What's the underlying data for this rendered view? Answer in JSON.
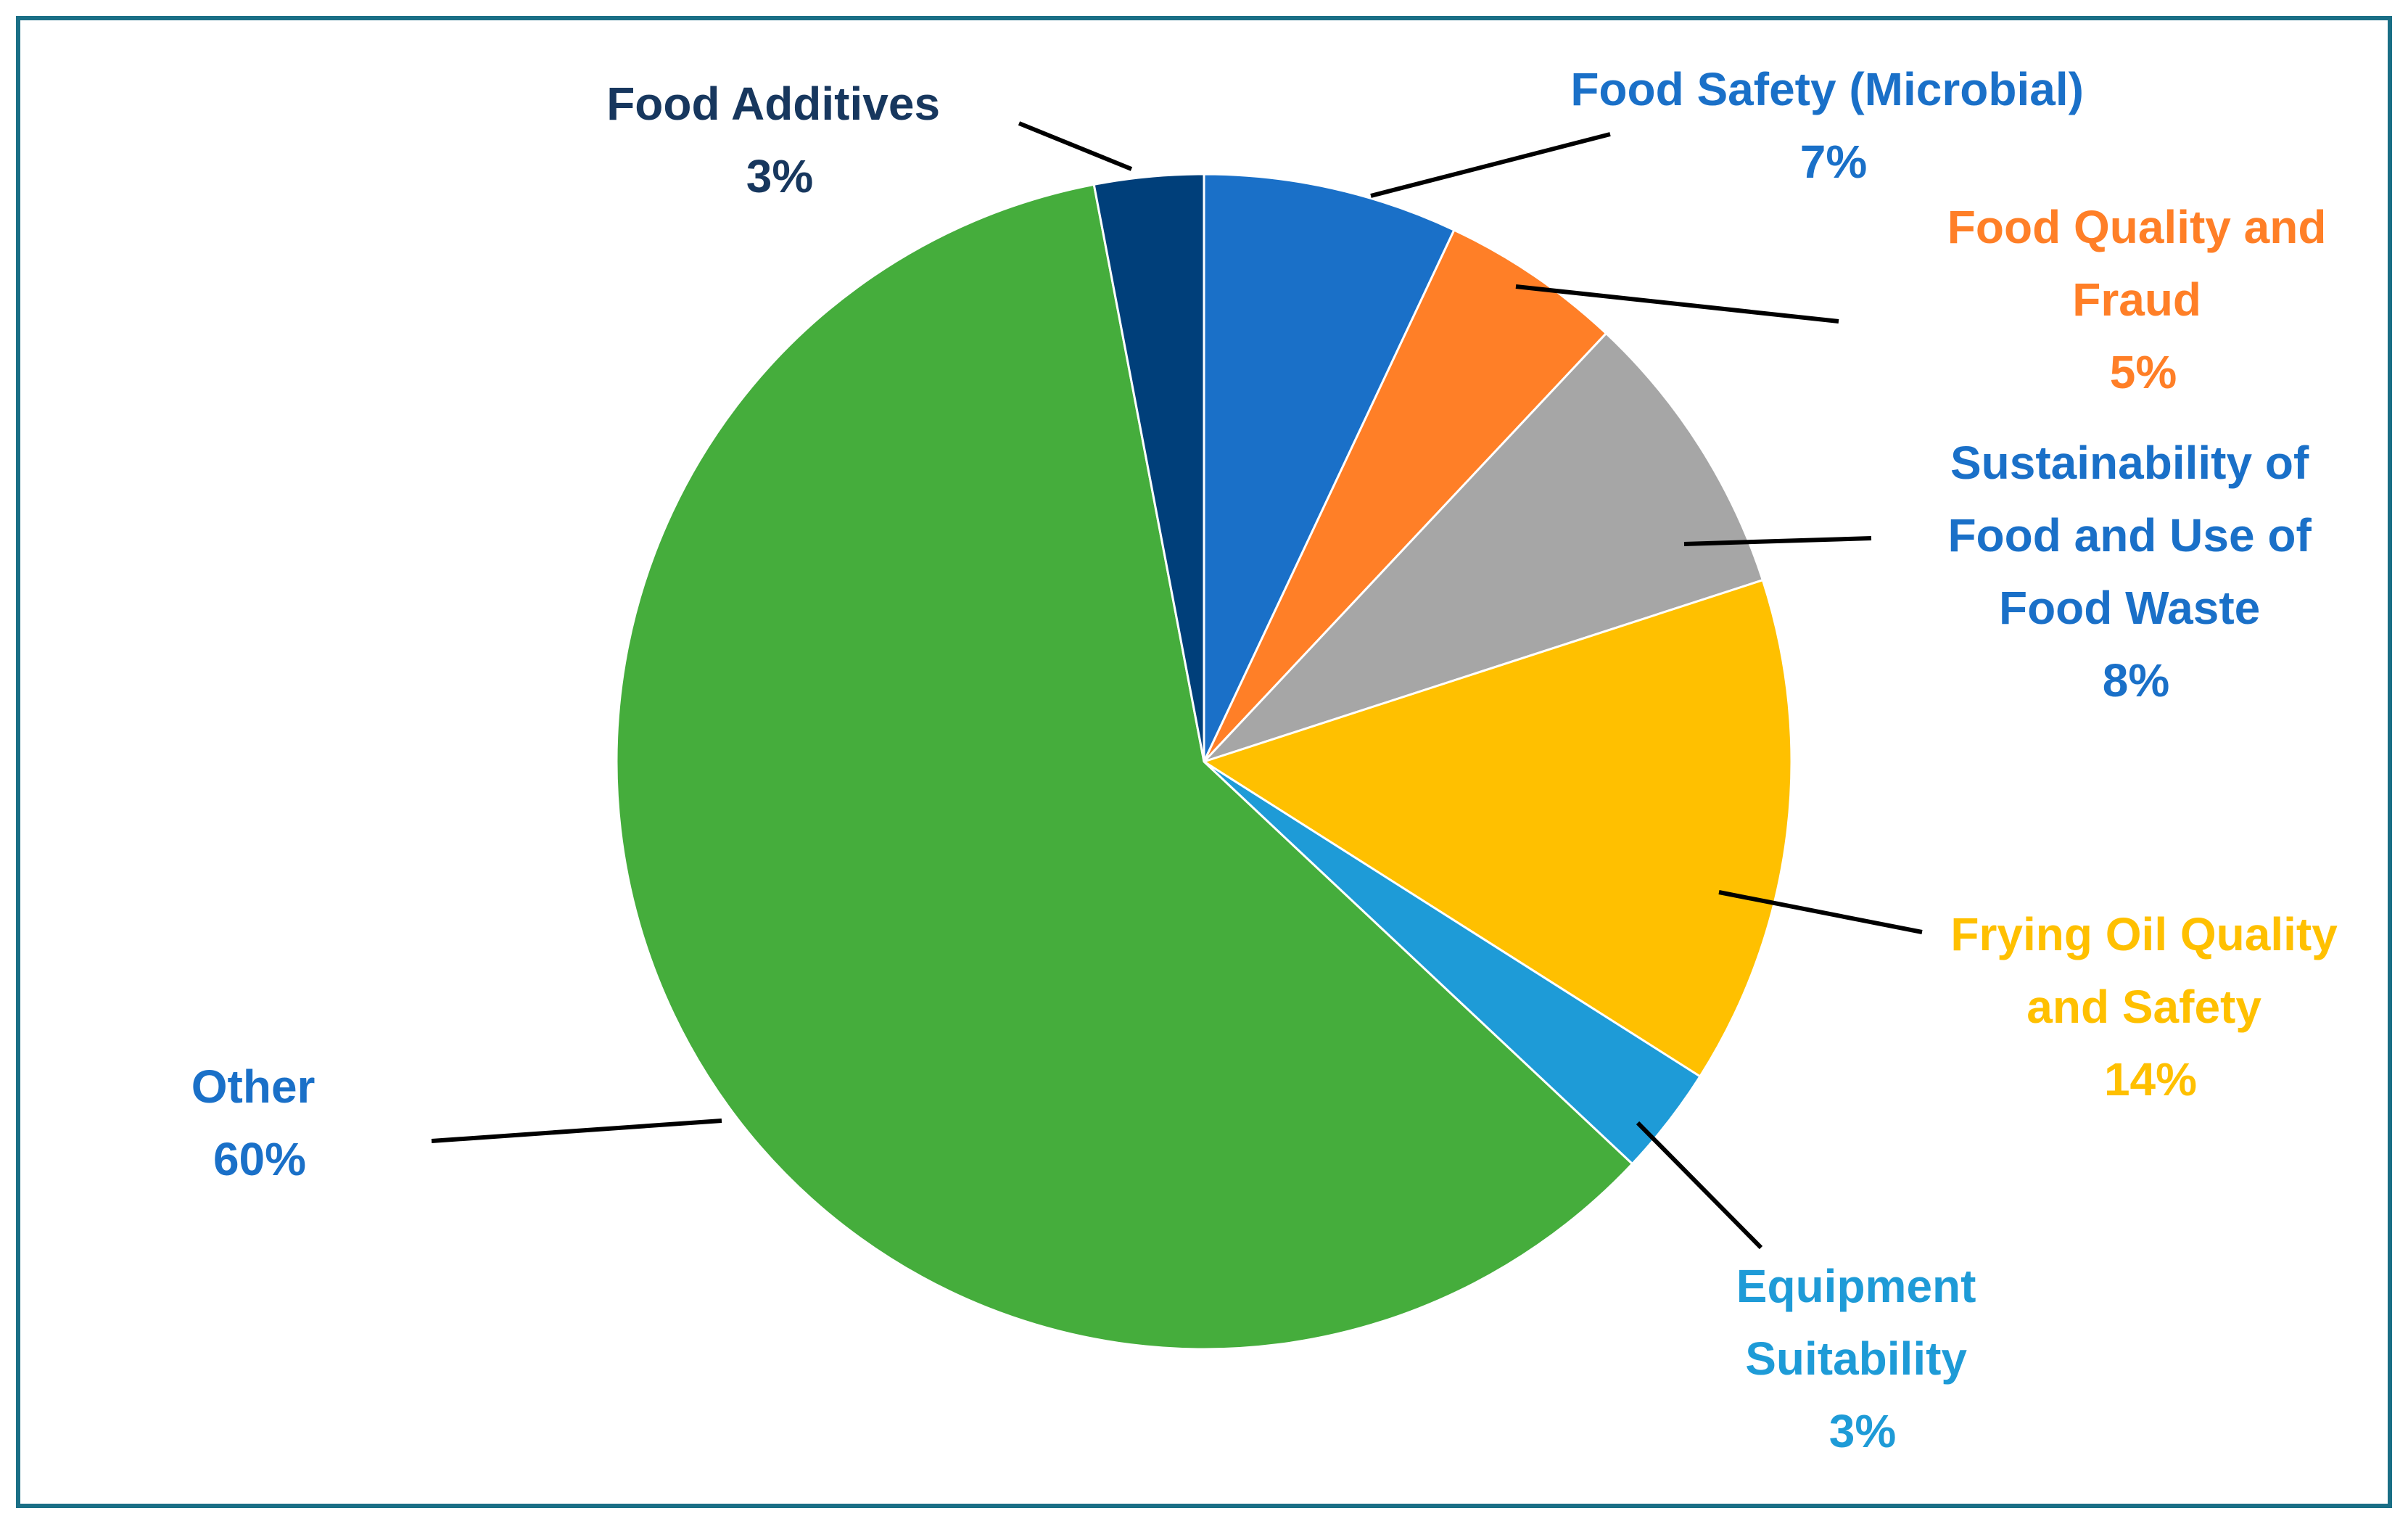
{
  "chart_data": {
    "type": "pie",
    "title": "",
    "start_angle_deg": 0,
    "direction": "clockwise",
    "slices": [
      {
        "name": "Food Safety (Microbial)",
        "label_lines": [
          "Food Safety (Microbial)"
        ],
        "percent_label": "7%",
        "value": 7,
        "color": "#1a70c8",
        "label_color": "#1a70c8"
      },
      {
        "name": "Food Quality and Fraud",
        "label_lines": [
          "Food Quality and",
          "Fraud"
        ],
        "percent_label": "5%",
        "value": 5,
        "color": "#ff7f27",
        "label_color": "#ff7f27"
      },
      {
        "name": "Sustainability of Food and Use of Food Waste",
        "label_lines": [
          "Sustainability of",
          "Food and Use of",
          "Food Waste"
        ],
        "percent_label": "8%",
        "value": 8,
        "color": "#a6a6a6",
        "label_color": "#1a70c8"
      },
      {
        "name": "Frying Oil Quality and Safety",
        "label_lines": [
          "Frying Oil Quality",
          "and Safety"
        ],
        "percent_label": "14%",
        "value": 14,
        "color": "#ffc000",
        "label_color": "#ffc000"
      },
      {
        "name": "Equipment Suitability",
        "label_lines": [
          "Equipment",
          "Suitability"
        ],
        "percent_label": "3%",
        "value": 3,
        "color": "#1e9bd7",
        "label_color": "#1e9bd7"
      },
      {
        "name": "Other",
        "label_lines": [
          "Other"
        ],
        "percent_label": "60%",
        "value": 60,
        "color": "#45ad3c",
        "label_color": "#1a70c8"
      },
      {
        "name": "Food Additives",
        "label_lines": [
          "Food Additives"
        ],
        "percent_label": "3%",
        "value": 3,
        "color": "#003f7a",
        "label_color": "#17375e"
      }
    ]
  }
}
